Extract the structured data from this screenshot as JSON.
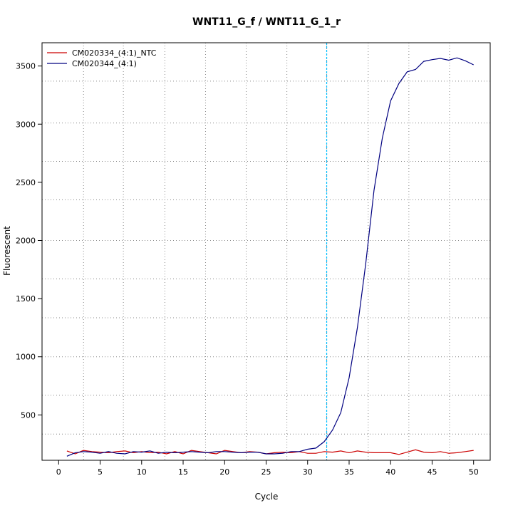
{
  "chart_data": {
    "type": "line",
    "title": "WNT11_G_f / WNT11_G_1_r",
    "xlabel": "Cycle",
    "ylabel": "Fluorescent",
    "xlim": [
      -2,
      52
    ],
    "ylim": [
      110,
      3700
    ],
    "x_ticks": [
      0,
      5,
      10,
      15,
      20,
      25,
      30,
      35,
      40,
      45,
      50
    ],
    "y_ticks": [
      500,
      1000,
      1500,
      2000,
      2500,
      3000,
      3500
    ],
    "grid": true,
    "x_grid": [
      3,
      7.8,
      12.8,
      17.7,
      22.6,
      27.5,
      32.3,
      37.3,
      42.2,
      47.1
    ],
    "y_grid": [
      335,
      670,
      1000,
      1335,
      1670,
      2000,
      2350,
      2680,
      3010,
      3370
    ],
    "threshold_x": 32.3,
    "threshold_color": "#00bfff",
    "legend": "top-left",
    "x": [
      1,
      2,
      3,
      4,
      5,
      6,
      7,
      8,
      9,
      10,
      11,
      12,
      13,
      14,
      15,
      16,
      17,
      18,
      19,
      20,
      21,
      22,
      23,
      24,
      25,
      26,
      27,
      28,
      29,
      30,
      31,
      32,
      33,
      34,
      35,
      36,
      37,
      38,
      39,
      40,
      41,
      42,
      43,
      44,
      45,
      46,
      47,
      48,
      49,
      50
    ],
    "series": [
      {
        "name": "CM020334_(4:1)_NTC",
        "color": "#cc0000",
        "values": [
          190,
          165,
          195,
          185,
          180,
          175,
          185,
          190,
          175,
          185,
          175,
          180,
          165,
          185,
          165,
          195,
          185,
          175,
          165,
          195,
          185,
          175,
          185,
          180,
          165,
          175,
          180,
          175,
          185,
          170,
          170,
          185,
          180,
          190,
          175,
          190,
          180,
          175,
          175,
          175,
          160,
          180,
          200,
          180,
          175,
          185,
          170,
          175,
          185,
          195
        ]
      },
      {
        "name": "CM020344_(4:1)",
        "color": "#000080",
        "values": [
          145,
          175,
          185,
          180,
          170,
          185,
          170,
          165,
          185,
          180,
          190,
          170,
          180,
          175,
          180,
          185,
          180,
          175,
          185,
          185,
          180,
          175,
          180,
          180,
          165,
          165,
          170,
          185,
          185,
          205,
          215,
          270,
          370,
          520,
          820,
          1250,
          1800,
          2430,
          2880,
          3200,
          3350,
          3450,
          3470,
          3540,
          3555,
          3565,
          3550,
          3570,
          3545,
          3510
        ]
      }
    ]
  }
}
